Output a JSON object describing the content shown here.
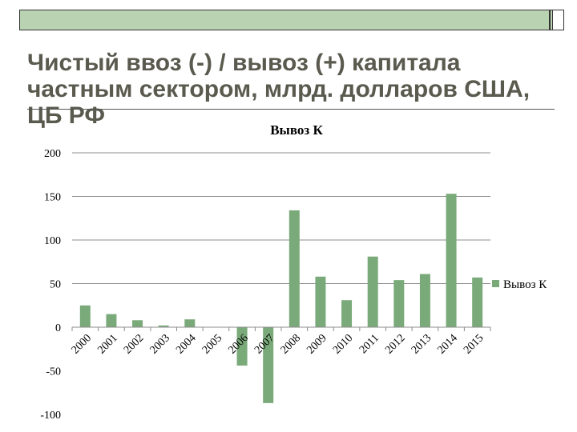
{
  "slide": {
    "title": "Чистый ввоз (-) / вывоз (+)  капитала частным сектором, млрд. долларов США, ЦБ РФ"
  },
  "colors": {
    "bar": "#7aaa7a",
    "gridline": "#8c8c8c",
    "header_bar": "#b9d3b2"
  },
  "chart_data": {
    "type": "bar",
    "title": "Вывоз К",
    "categories": [
      "2000",
      "2001",
      "2002",
      "2003",
      "2004",
      "2005",
      "2006",
      "2007",
      "2008",
      "2009",
      "2010",
      "2011",
      "2012",
      "2013",
      "2014",
      "2015"
    ],
    "series": [
      {
        "name": "Вывоз К",
        "values": [
          25,
          15,
          8,
          2,
          9,
          0,
          -44,
          -87,
          134,
          58,
          31,
          81,
          54,
          61,
          153,
          57
        ]
      }
    ],
    "ylim": [
      -100,
      200
    ],
    "yticks": [
      -100,
      -50,
      0,
      50,
      100,
      150,
      200
    ],
    "grid": true,
    "legend": "right"
  }
}
